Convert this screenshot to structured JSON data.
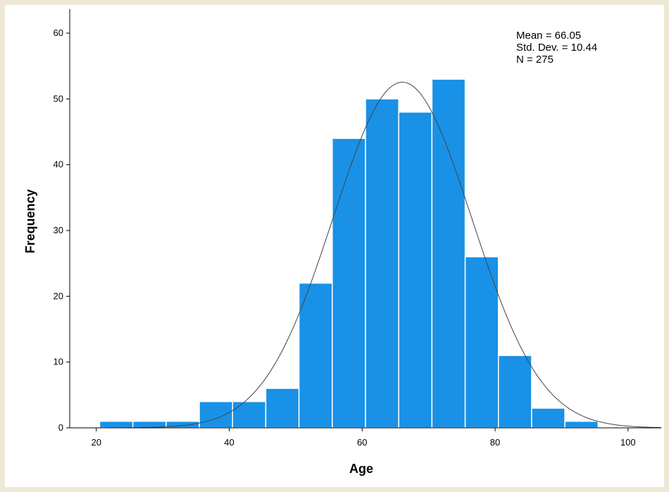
{
  "chart_data": {
    "type": "bar",
    "subtype": "histogram",
    "xlabel": "Age",
    "ylabel": "Frequency",
    "xlim": [
      16,
      105
    ],
    "ylim": [
      0,
      63
    ],
    "x_ticks": [
      20,
      40,
      60,
      80,
      100
    ],
    "y_ticks": [
      0,
      10,
      20,
      30,
      40,
      50,
      60
    ],
    "bin_width": 5,
    "bins": [
      {
        "start": 20.5,
        "end": 25.5,
        "count": 1
      },
      {
        "start": 25.5,
        "end": 30.5,
        "count": 1
      },
      {
        "start": 30.5,
        "end": 35.5,
        "count": 1
      },
      {
        "start": 35.5,
        "end": 40.5,
        "count": 4
      },
      {
        "start": 40.5,
        "end": 45.5,
        "count": 4
      },
      {
        "start": 45.5,
        "end": 50.5,
        "count": 6
      },
      {
        "start": 50.5,
        "end": 55.5,
        "count": 22
      },
      {
        "start": 55.5,
        "end": 60.5,
        "count": 44
      },
      {
        "start": 60.5,
        "end": 65.5,
        "count": 50
      },
      {
        "start": 65.5,
        "end": 70.5,
        "count": 48
      },
      {
        "start": 70.5,
        "end": 75.5,
        "count": 53
      },
      {
        "start": 75.5,
        "end": 80.5,
        "count": 26
      },
      {
        "start": 80.5,
        "end": 85.5,
        "count": 11
      },
      {
        "start": 85.5,
        "end": 90.5,
        "count": 3
      },
      {
        "start": 90.5,
        "end": 95.5,
        "count": 1
      }
    ],
    "normal_curve": {
      "mean": 66.05,
      "std_dev": 10.44,
      "n": 275
    },
    "stats_text": {
      "mean": "Mean = 66.05",
      "std_dev": "Std. Dev. = 10.44",
      "n": "N = 275"
    },
    "bar_color": "#1991e6",
    "bar_edge_color": "#ffffff",
    "curve_color": "#444444",
    "grid": false,
    "legend": "none"
  }
}
